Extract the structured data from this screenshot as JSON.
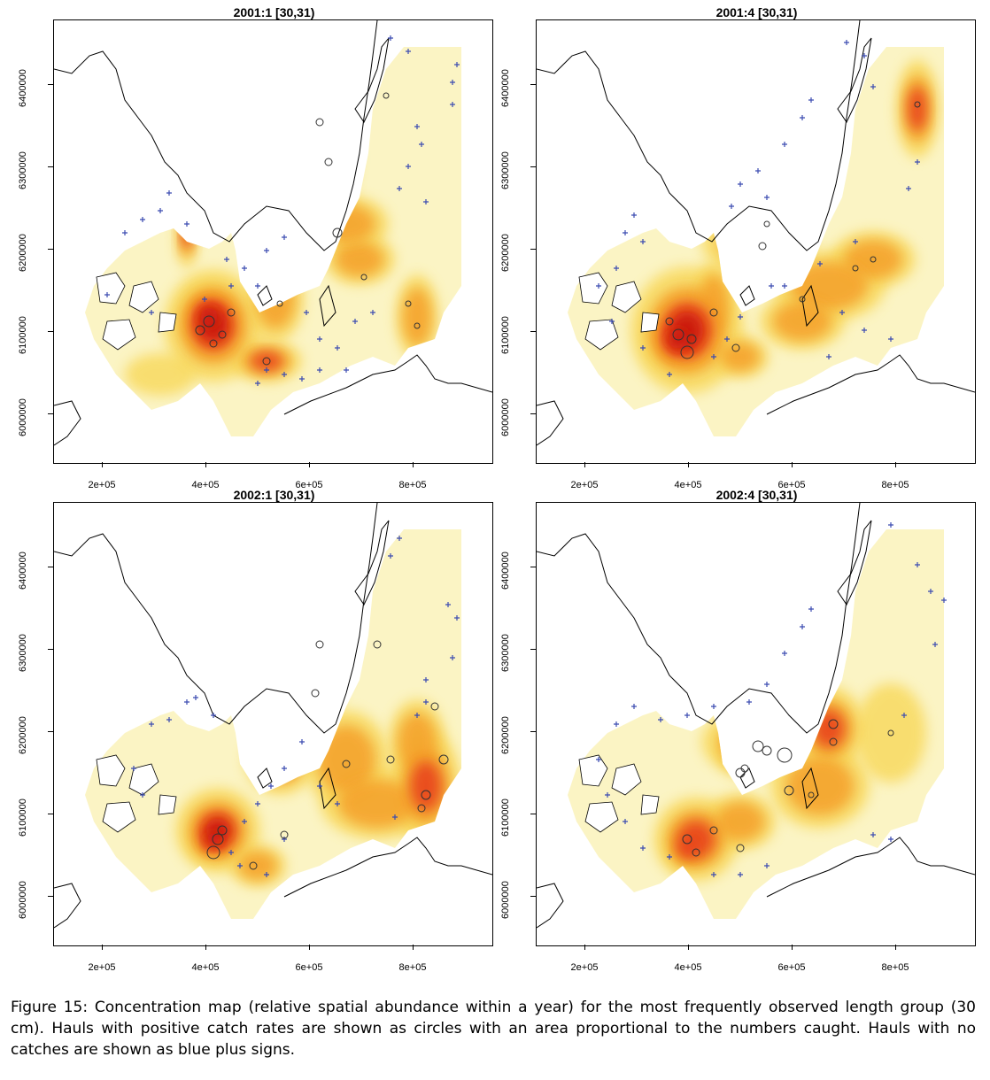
{
  "figure": {
    "caption": "Figure 15: Concentration map (relative spatial abundance within a year) for the most frequently observed length group (30 cm). Hauls with positive catch rates are shown as circles with an area proportional to the numbers caught. Hauls with no catches are shown as blue plus signs."
  },
  "axes": {
    "x_ticks": [
      "2e+05",
      "4e+05",
      "6e+05",
      "8e+05"
    ],
    "y_ticks": [
      "6000000",
      "6100000",
      "6200000",
      "6300000",
      "6400000"
    ]
  },
  "colors": {
    "low": "#fbf4c4",
    "mid": "#f8d85a",
    "orange": "#f4a02c",
    "high": "#e8451a",
    "peak": "#cc1d10",
    "plus": "#3b4bb0",
    "coast": "#000000"
  },
  "panels": [
    {
      "title": "2001:1 [30,31)"
    },
    {
      "title": "2001:4 [30,31)"
    },
    {
      "title": "2002:1 [30,31)"
    },
    {
      "title": "2002:4 [30,31)"
    }
  ]
}
